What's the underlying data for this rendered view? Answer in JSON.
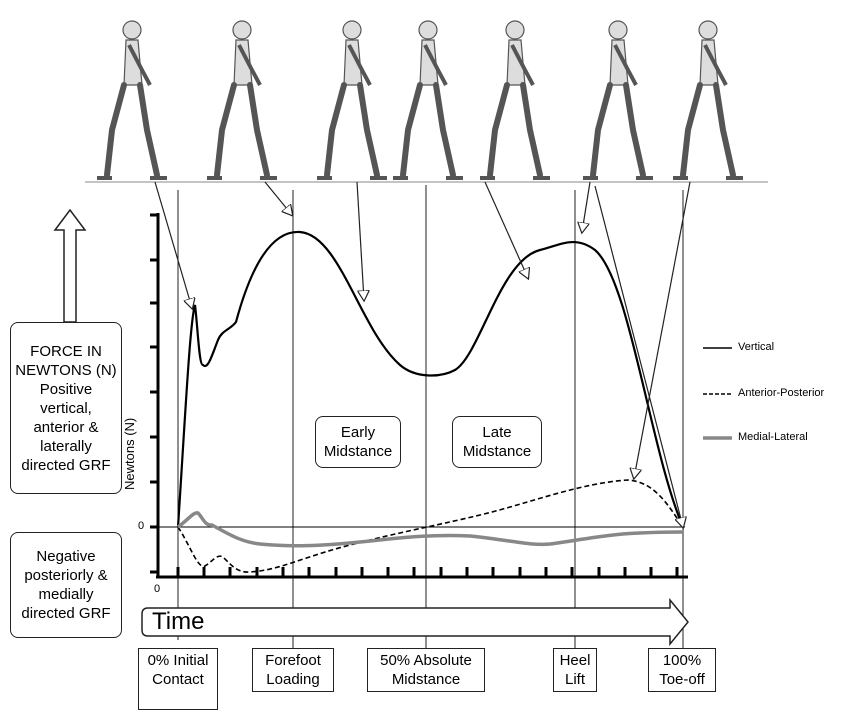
{
  "left_boxes": {
    "positive": "FORCE IN NEWTONS (N) Positive vertical, anterior & laterally directed GRF",
    "negative": "Negative posteriorly & medially directed GRF"
  },
  "axis": {
    "y_label": "Newtons (N)",
    "y_zero": "0",
    "x_zero": "0",
    "time": "Time"
  },
  "phases": {
    "early": "Early Midstance",
    "late": "Late Midstance"
  },
  "events": [
    "0% Initial Contact",
    "Forefoot Loading",
    "50% Absolute Midstance",
    "Heel Lift",
    "100% Toe-off"
  ],
  "legend": [
    "Vertical",
    "Anterior-Posterior",
    "Medial-Lateral"
  ]
}
